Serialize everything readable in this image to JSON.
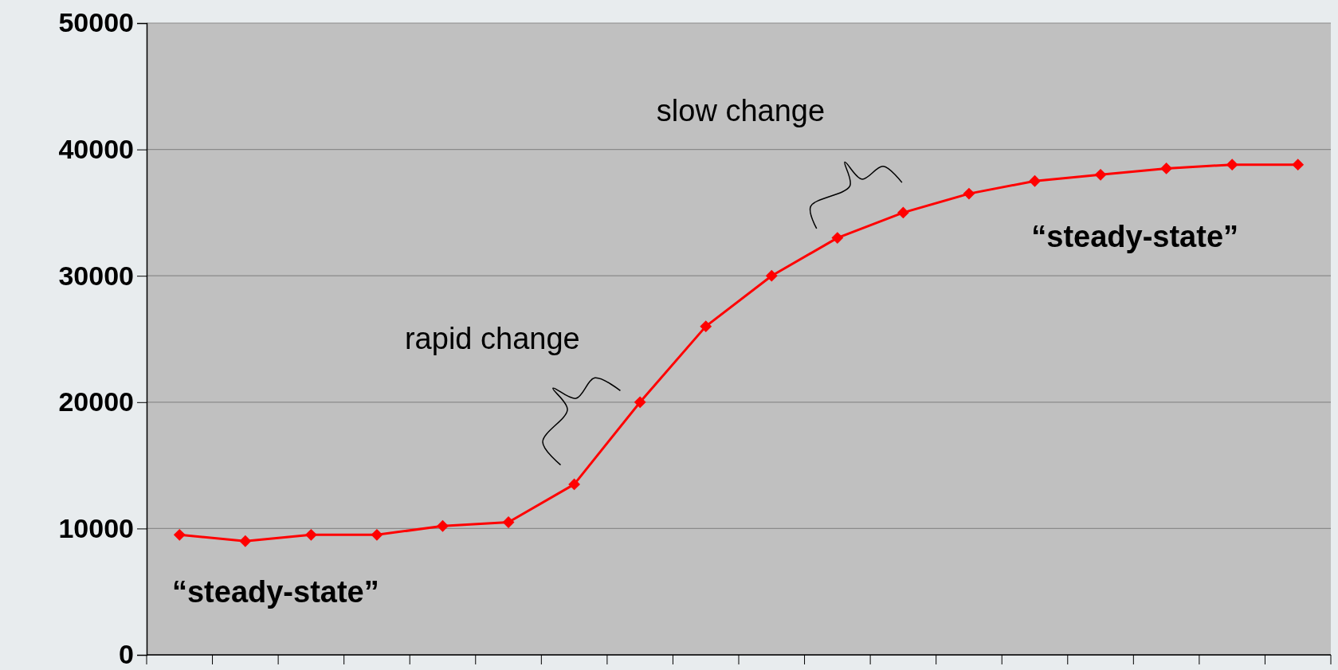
{
  "chart_data": {
    "type": "line",
    "categories": [
      null,
      null,
      null,
      null,
      null,
      null,
      null,
      null,
      null,
      null,
      null,
      null,
      null,
      null,
      null,
      null,
      null,
      null
    ],
    "series": [
      {
        "color": "#ff0000",
        "values": [
          9500,
          9000,
          9500,
          9500,
          10200,
          10500,
          13500,
          20000,
          26000,
          30000,
          33000,
          35000,
          36500,
          37500,
          38000,
          38500,
          38800,
          38800
        ]
      }
    ],
    "ylim": [
      0,
      50000
    ],
    "yticks": [
      0,
      10000,
      20000,
      30000,
      40000,
      50000
    ],
    "grid": "y",
    "marker": "diamond",
    "line_style": "solid",
    "annotations": [
      "slow change",
      "rapid change",
      "“steady-state”",
      "“steady-state”"
    ]
  }
}
